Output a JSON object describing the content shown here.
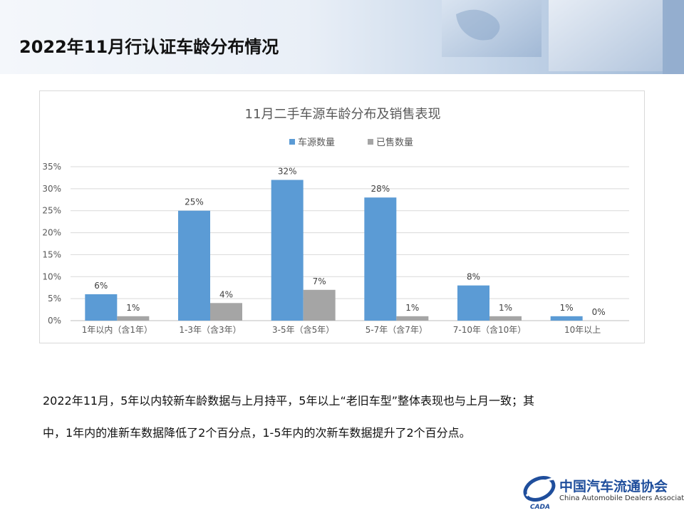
{
  "page": {
    "title": "2022年11月行认证车龄分布情况"
  },
  "chart_data": {
    "type": "bar",
    "title": "11月二手车源车龄分布及销售表现",
    "categories": [
      "1年以内（含1年）",
      "1-3年（含3年）",
      "3-5年（含5年）",
      "5-7年（含7年）",
      "7-10年（含10年）",
      "10年以上"
    ],
    "series": [
      {
        "name": "车源数量",
        "values": [
          6,
          25,
          32,
          28,
          8,
          1
        ],
        "labels": [
          "6%",
          "25%",
          "32%",
          "28%",
          "8%",
          "1%"
        ],
        "color": "#5b9bd5"
      },
      {
        "name": "已售数量",
        "values": [
          1,
          4,
          7,
          1,
          1,
          0
        ],
        "labels": [
          "1%",
          "4%",
          "7%",
          "1%",
          "1%",
          "0%"
        ],
        "color": "#a5a5a5"
      }
    ],
    "ylim": [
      0,
      35
    ],
    "yticks": [
      "0%",
      "5%",
      "10%",
      "15%",
      "20%",
      "25%",
      "30%",
      "35%"
    ],
    "ytick_values": [
      0,
      5,
      10,
      15,
      20,
      25,
      30,
      35
    ],
    "xlabel": "",
    "ylabel": "",
    "grid": true,
    "legend": "top-center"
  },
  "summary": {
    "line1": "2022年11月，5年以内较新车龄数据与上月持平，5年以上“老旧车型”整体表现也与上月一致；其",
    "line2": "中，1年内的准新车数据降低了2个百分点，1-5年内的次新车数据提升了2个百分点。"
  },
  "logo": {
    "name_cn": "中国汽车流通协会",
    "name_en": "China Automobile Dealers Association",
    "mark_text": "CADA"
  }
}
